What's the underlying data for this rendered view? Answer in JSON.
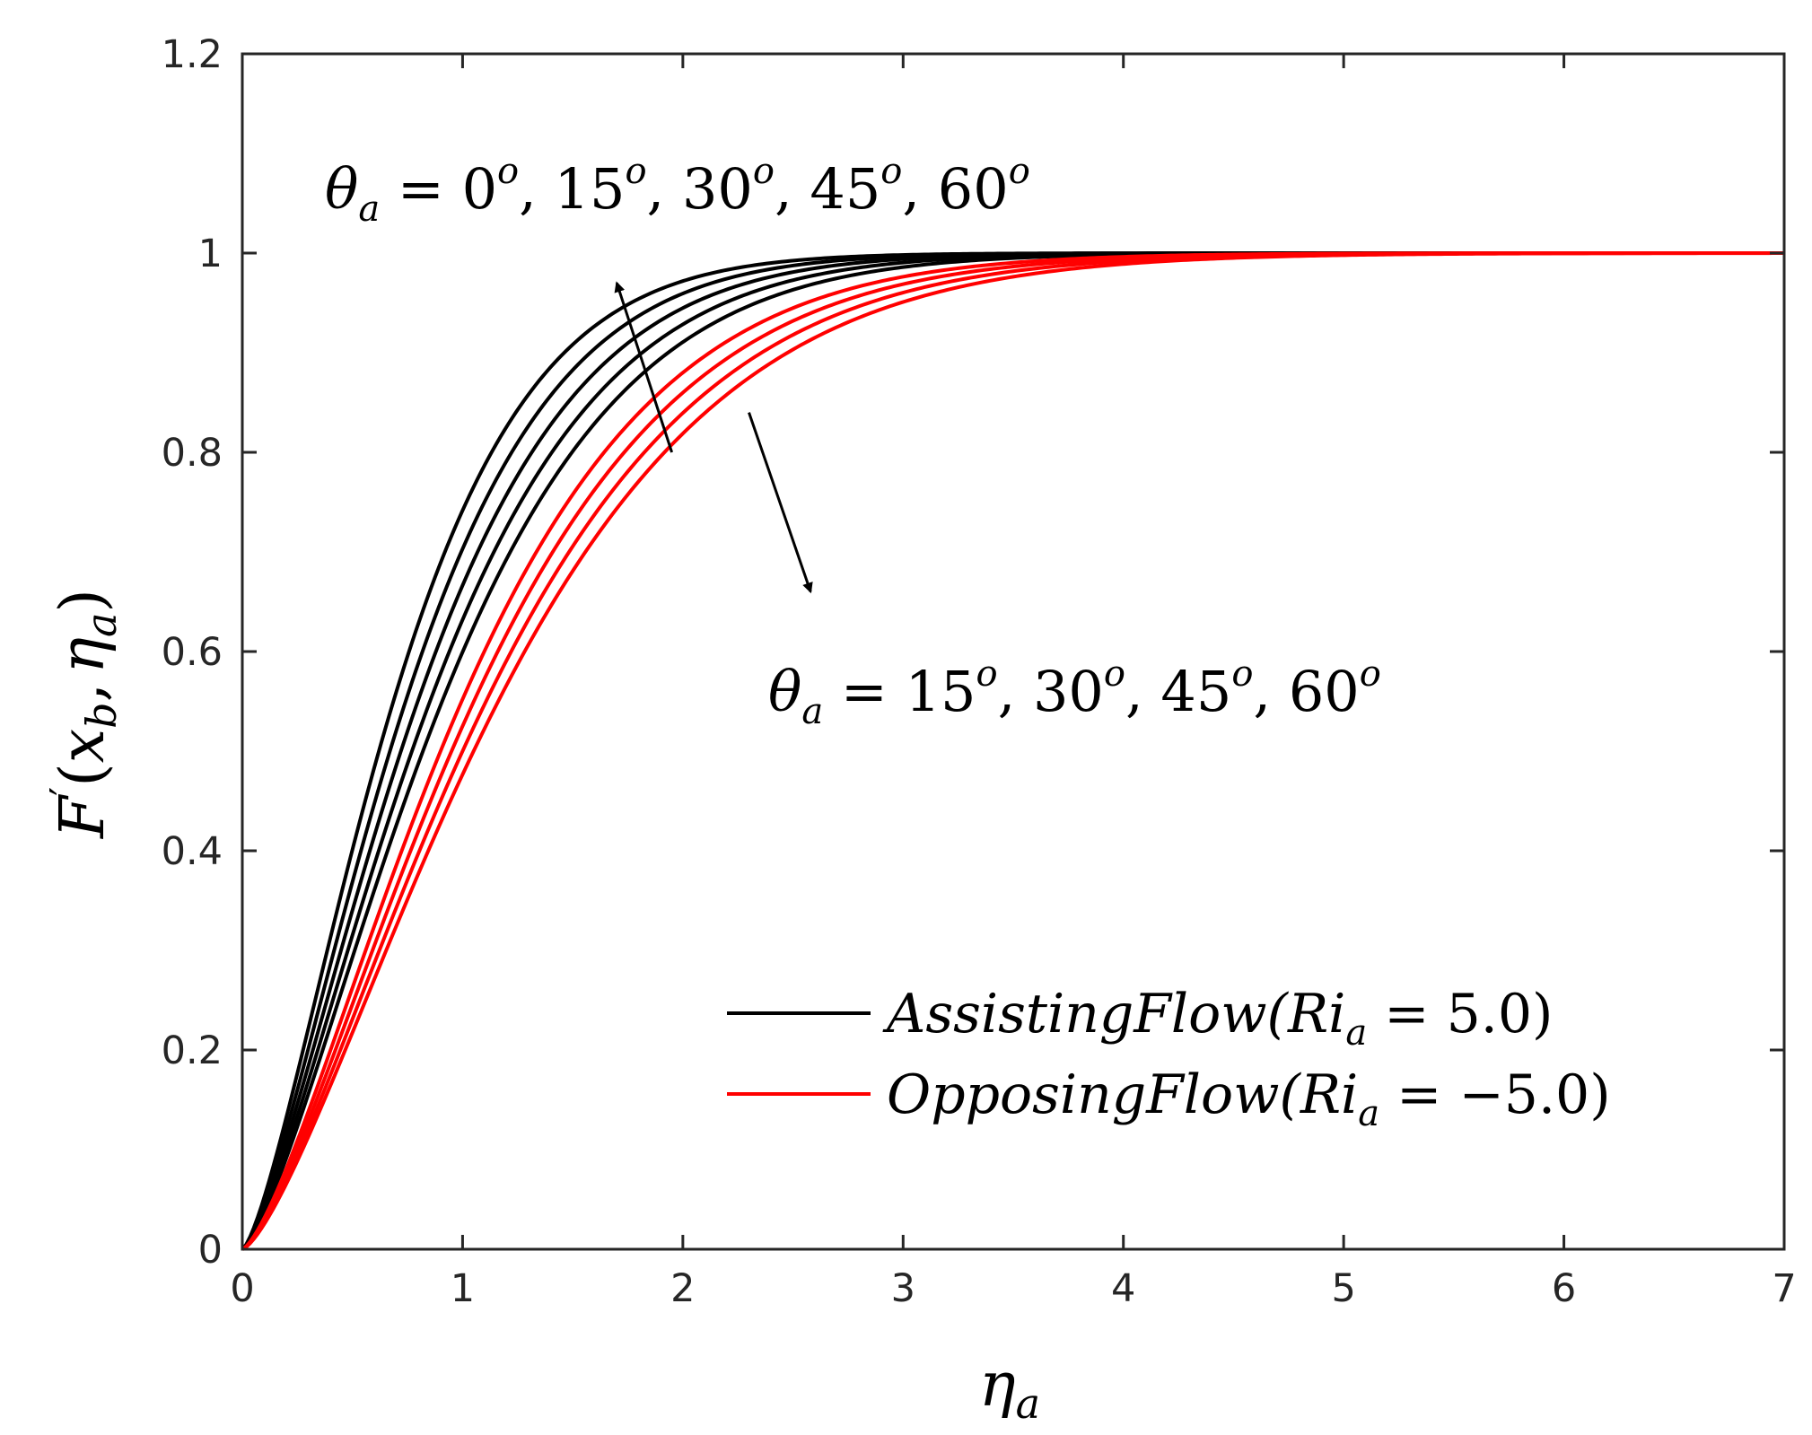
{
  "chart_data": {
    "type": "line",
    "xlabel": {
      "base": "η",
      "sub": "a"
    },
    "ylabel": {
      "base": "F",
      "prime": "′",
      "open": "(",
      "x": "x",
      "x_sub": "b",
      "comma": ",",
      "eta": "η",
      "eta_sub": "a",
      "close": ")"
    },
    "xlim": [
      0,
      7
    ],
    "ylim": [
      0,
      1.2
    ],
    "xticks": [
      0,
      1,
      2,
      3,
      4,
      5,
      6,
      7
    ],
    "yticks": [
      0,
      0.2,
      0.4,
      0.6,
      0.8,
      1,
      1.2
    ],
    "xtick_labels": [
      "0",
      "1",
      "2",
      "3",
      "4",
      "5",
      "6",
      "7"
    ],
    "ytick_labels": [
      "0",
      "0.2",
      "0.4",
      "0.6",
      "0.8",
      "1",
      "1.2"
    ],
    "grid": false,
    "legend_placement": "bottom-right",
    "series": [
      {
        "name": "AssistingFlow(Ri_a = 5.0)",
        "color": "#000000",
        "legend_index": 0,
        "eta_at_half": 0.62
      },
      {
        "color": "#000000",
        "eta_at_half": 0.67
      },
      {
        "color": "#000000",
        "eta_at_half": 0.72
      },
      {
        "color": "#000000",
        "eta_at_half": 0.77
      },
      {
        "color": "#000000",
        "eta_at_half": 0.82
      },
      {
        "name": "OpposingFlow(Ri_a = −5.0)",
        "color": "#ff0000",
        "legend_index": 1,
        "eta_at_half": 0.9
      },
      {
        "color": "#ff0000",
        "eta_at_half": 0.95
      },
      {
        "color": "#ff0000",
        "eta_at_half": 1.0
      },
      {
        "color": "#ff0000",
        "eta_at_half": 1.05
      }
    ],
    "legend": [
      {
        "pre": "AssistingFlow(Ri",
        "sub": "a",
        "post": " = 5.0)",
        "color": "#000000"
      },
      {
        "pre": "OpposingFlow(Ri",
        "sub": "a",
        "post": " = −5.0)",
        "color": "#ff0000"
      }
    ],
    "annotations": [
      {
        "theta": "θ",
        "sub": "a",
        "eq": " = ",
        "values": [
          {
            "n": "0",
            "sup": "o"
          },
          {
            "n": "15",
            "sup": "o"
          },
          {
            "n": "30",
            "sup": "o"
          },
          {
            "n": "45",
            "sup": "o"
          },
          {
            "n": "60",
            "sup": "o"
          }
        ],
        "arrow_from": [
          1.95,
          0.8
        ],
        "arrow_to": [
          1.7,
          0.97
        ]
      },
      {
        "theta": "θ",
        "sub": "a",
        "eq": " = ",
        "values": [
          {
            "n": "15",
            "sup": "o"
          },
          {
            "n": "30",
            "sup": "o"
          },
          {
            "n": "45",
            "sup": "o"
          },
          {
            "n": "60",
            "sup": "o"
          }
        ],
        "arrow_from": [
          2.3,
          0.84
        ],
        "arrow_to": [
          2.58,
          0.66
        ]
      }
    ]
  }
}
